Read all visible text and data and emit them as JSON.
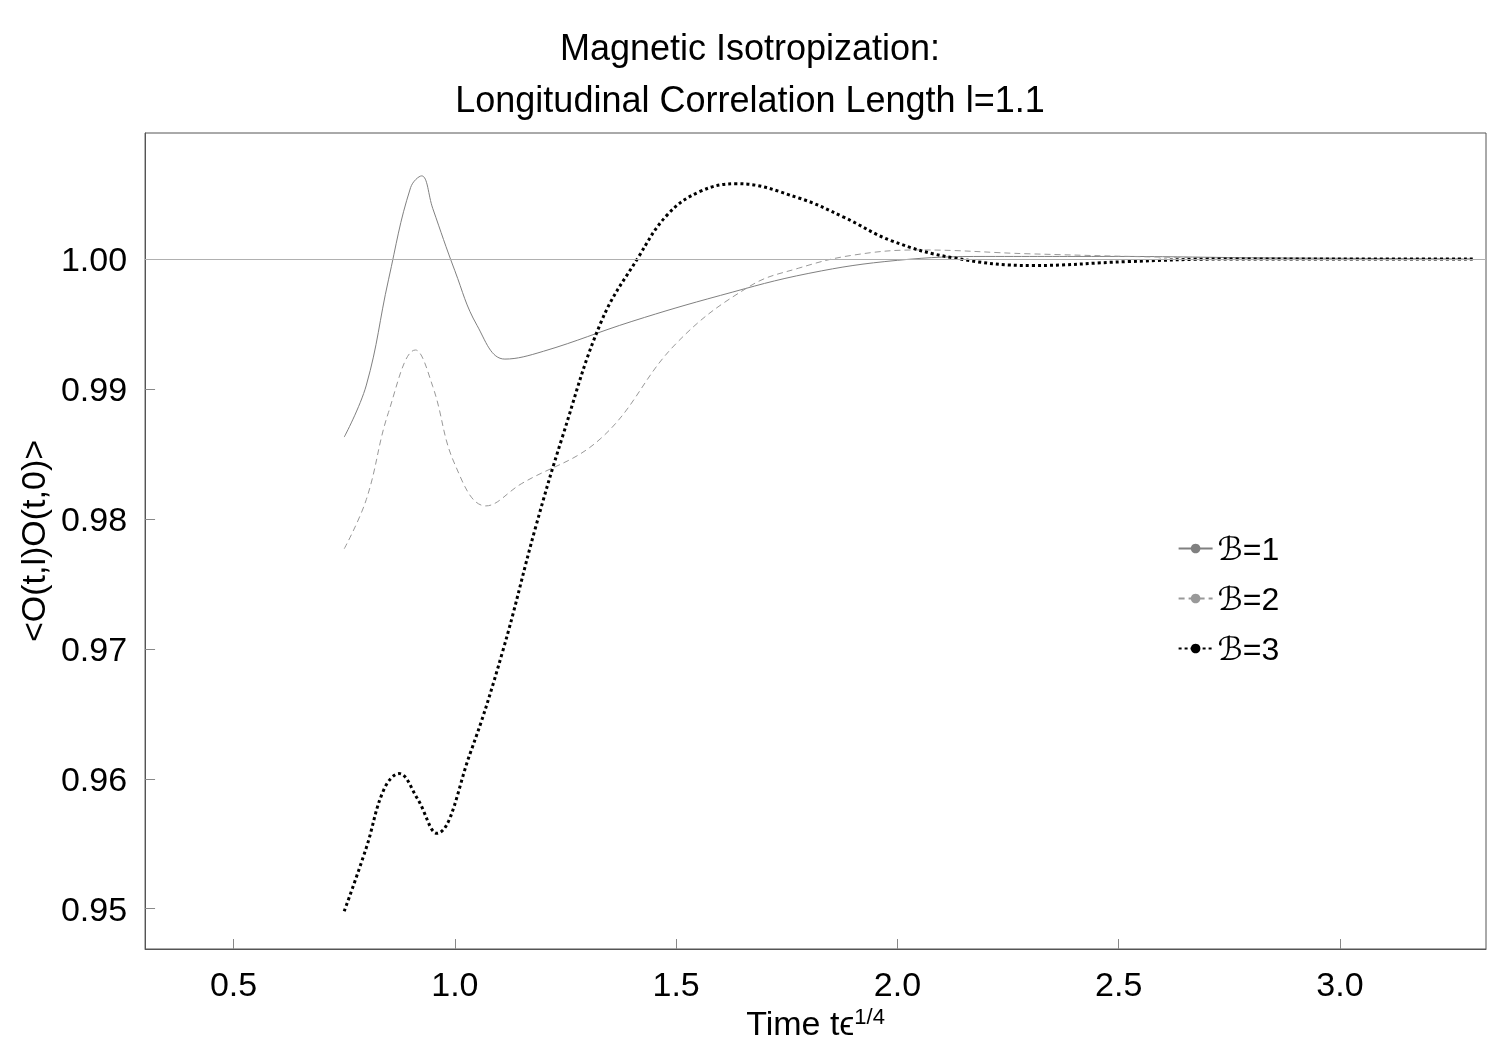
{
  "chart_data": {
    "type": "line",
    "title": "Magnetic Isotropization:\nLongitudinal Correlation Length l=1.1",
    "xlabel": "Time tϵ$^{1/4}$",
    "ylabel": "<O(t,l)O(t,0)>",
    "xlim": [
      0.3,
      3.33
    ],
    "ylim": [
      0.9469,
      1.0097
    ],
    "xticks": [
      0.5,
      {
        "value": 1,
        "label": "1.0"
      },
      1.5,
      {
        "value": 2,
        "label": "2.0"
      },
      2.5,
      {
        "value": 3,
        "label": "3.0"
      }
    ],
    "yticks": [
      0.95,
      0.96,
      0.97,
      0.98,
      0.99,
      {
        "value": 1,
        "label": "1.00"
      }
    ],
    "grid": false,
    "legend": "right",
    "marker": "none",
    "ref_lines": [
      {
        "axis": "y",
        "value": 1,
        "color": "#b0b0b0",
        "line_style": "solid"
      }
    ],
    "series": [
      {
        "name": "ℬ=1",
        "color": "#808080",
        "line_style": "solid",
        "x": [
          0.75,
          0.8,
          0.85,
          0.9,
          0.925,
          0.95,
          1.0,
          1.05,
          1.113,
          1.2,
          1.4,
          1.6,
          1.8,
          2.0,
          2.2,
          2.5,
          2.8,
          3.3
        ],
        "values": [
          0.9863,
          0.9903,
          0.9984,
          1.0055,
          1.0064,
          1.0039,
          0.9991,
          0.9949,
          0.9923,
          0.9929,
          0.9952,
          0.9972,
          0.9989,
          0.9999,
          1.0002,
          1.0002,
          1.0001,
          1.0
        ]
      },
      {
        "name": "ℬ=2",
        "color": "#999999",
        "line_style": "dashed",
        "x": [
          0.75,
          0.8,
          0.85,
          0.911,
          0.95,
          1.0,
          1.07,
          1.15,
          1.33,
          1.5,
          1.666,
          1.777,
          1.9,
          2.05,
          2.3,
          2.7,
          3.3
        ],
        "values": [
          0.9777,
          0.9815,
          0.9882,
          0.993,
          0.9902,
          0.9842,
          0.981,
          0.9827,
          0.9862,
          0.9935,
          0.9979,
          0.9993,
          1.0003,
          1.0007,
          1.0004,
          1.0001,
          1.0
        ]
      },
      {
        "name": "ℬ=3",
        "color": "#000000",
        "line_style": "dotted",
        "x": [
          0.75,
          0.8,
          0.84,
          0.874,
          0.915,
          0.959,
          1.034,
          1.108,
          1.182,
          1.242,
          1.331,
          1.414,
          1.48,
          1.554,
          1.637,
          1.777,
          1.88,
          1.987,
          2.125,
          2.305,
          2.519,
          2.734,
          3.3
        ],
        "values": [
          0.9498,
          0.9547,
          0.9592,
          0.9604,
          0.9585,
          0.9558,
          0.9619,
          0.9698,
          0.9793,
          0.9862,
          0.9952,
          1.0001,
          1.0034,
          1.0052,
          1.0058,
          1.0047,
          1.0032,
          1.0014,
          1.0001,
          0.9995,
          0.9998,
          1.0,
          1.0
        ]
      }
    ]
  }
}
